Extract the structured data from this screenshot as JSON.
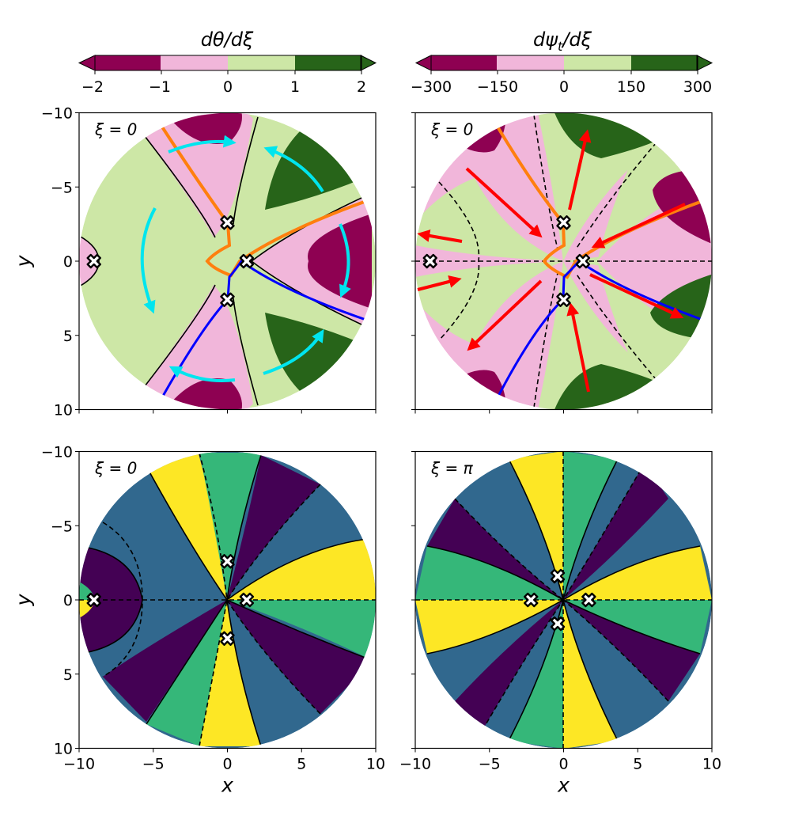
{
  "colorbars": [
    {
      "title": "dθ/dξ",
      "ticks": [
        "−2",
        "−1",
        "0",
        "1",
        "2"
      ],
      "colors": [
        "#8e0152",
        "#f1b6da",
        "#cde7a6",
        "#276419"
      ]
    },
    {
      "title": "dψ_t/dξ",
      "title_main": "dψ",
      "title_sub": "t",
      "title_tail": "/dξ",
      "ticks": [
        "−300",
        "−150",
        "0",
        "150",
        "300"
      ],
      "colors": [
        "#8e0152",
        "#f1b6da",
        "#cde7a6",
        "#276419"
      ]
    }
  ],
  "panels": [
    {
      "label": "ξ = 0"
    },
    {
      "label": "ξ = 0"
    },
    {
      "label": "ξ = 0"
    },
    {
      "label": "ξ = π"
    }
  ],
  "axes": {
    "xlabel": "x",
    "ylabel": "y",
    "xticks": [
      "−10",
      "−5",
      "0",
      "5",
      "10"
    ],
    "yticks": [
      "10",
      "5",
      "0",
      "−5",
      "−10"
    ]
  },
  "chart_data": {
    "type": "heatmap",
    "xlim": [
      -10,
      10
    ],
    "ylim": [
      -10,
      10
    ],
    "domain_radius": 10,
    "colors": {
      "arrows_theta": "#00e5ee",
      "arrows_psi": "#ff0000",
      "curve_orange": "#ff7f0e",
      "curve_blue": "#0000ff",
      "sector_colors": [
        "#440154",
        "#31688e",
        "#35b779",
        "#fde725"
      ]
    },
    "critical_points": [
      {
        "panel": 0,
        "points": [
          [
            -9,
            0
          ],
          [
            1.3,
            0
          ],
          [
            0,
            2.6
          ],
          [
            0,
            -2.6
          ]
        ]
      },
      {
        "panel": 1,
        "points": [
          [
            -9,
            0
          ],
          [
            1.3,
            0
          ],
          [
            0,
            2.6
          ],
          [
            0,
            -2.6
          ]
        ]
      },
      {
        "panel": 2,
        "points": [
          [
            -9,
            0
          ],
          [
            1.3,
            0
          ],
          [
            0,
            2.6
          ],
          [
            0,
            -2.6
          ]
        ]
      },
      {
        "panel": 3,
        "points": [
          [
            -2.2,
            0
          ],
          [
            1.7,
            0
          ],
          [
            -0.4,
            1.6
          ],
          [
            -0.4,
            -1.6
          ]
        ]
      }
    ]
  }
}
